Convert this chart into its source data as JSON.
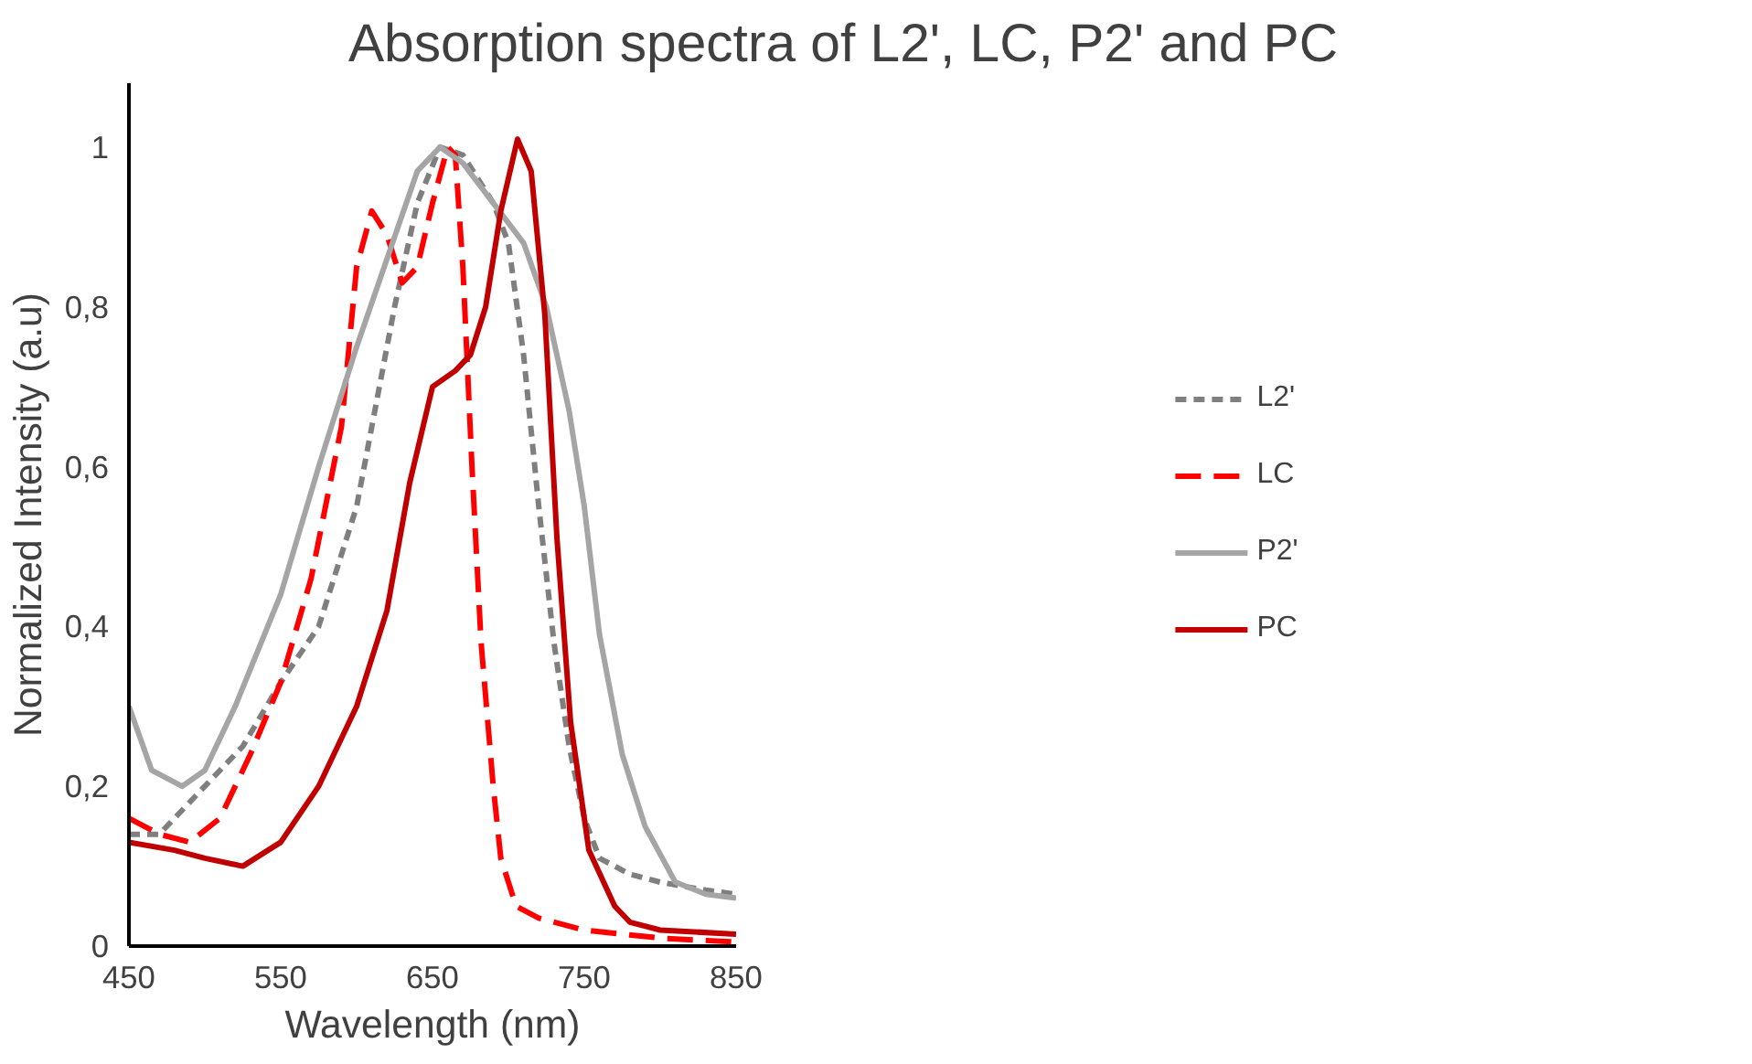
{
  "chart_data": {
    "type": "line",
    "title": "Absorption spectra of L2', LC, P2' and PC",
    "xlabel": "Wavelength (nm)",
    "ylabel": "Normalized Intensity (a.u)",
    "xlim": [
      450,
      850
    ],
    "ylim": [
      0,
      1.08
    ],
    "xticks": [
      450,
      550,
      650,
      750,
      850
    ],
    "yticks": [
      {
        "value": 0,
        "label": "0"
      },
      {
        "value": 0.2,
        "label": "0,2"
      },
      {
        "value": 0.4,
        "label": "0,4"
      },
      {
        "value": 0.6,
        "label": "0,6"
      },
      {
        "value": 0.8,
        "label": "0,8"
      },
      {
        "value": 1,
        "label": "1"
      }
    ],
    "grid": false,
    "legend": "right",
    "marker": "none",
    "series": [
      {
        "name": "L2'",
        "color": "#7f7f7f",
        "line_style": "dotted",
        "x": [
          450,
          470,
          500,
          525,
          550,
          575,
          600,
          625,
          640,
          655,
          670,
          690,
          700,
          710,
          720,
          730,
          740,
          750,
          760,
          780,
          800,
          830,
          850
        ],
        "values": [
          0.14,
          0.14,
          0.2,
          0.25,
          0.33,
          0.4,
          0.55,
          0.8,
          0.93,
          1.0,
          0.99,
          0.93,
          0.88,
          0.74,
          0.55,
          0.38,
          0.25,
          0.16,
          0.11,
          0.09,
          0.08,
          0.07,
          0.065
        ]
      },
      {
        "name": "LC",
        "color": "#ff0000",
        "line_style": "dashed",
        "x": [
          450,
          470,
          490,
          510,
          530,
          550,
          570,
          590,
          600,
          610,
          620,
          630,
          640,
          650,
          660,
          665,
          670,
          676,
          682,
          690,
          695,
          705,
          720,
          750,
          800,
          850
        ],
        "values": [
          0.16,
          0.14,
          0.13,
          0.16,
          0.24,
          0.33,
          0.46,
          0.65,
          0.85,
          0.92,
          0.89,
          0.83,
          0.85,
          0.93,
          1.0,
          0.99,
          0.85,
          0.6,
          0.38,
          0.2,
          0.11,
          0.05,
          0.035,
          0.02,
          0.01,
          0.005
        ]
      },
      {
        "name": "P2'",
        "color": "#a5a5a5",
        "line_style": "solid",
        "x": [
          450,
          465,
          485,
          500,
          520,
          550,
          575,
          600,
          620,
          640,
          655,
          670,
          690,
          710,
          725,
          740,
          750,
          760,
          775,
          790,
          810,
          830,
          850
        ],
        "values": [
          0.3,
          0.22,
          0.2,
          0.22,
          0.3,
          0.44,
          0.6,
          0.75,
          0.86,
          0.97,
          1.0,
          0.98,
          0.93,
          0.88,
          0.8,
          0.67,
          0.55,
          0.39,
          0.24,
          0.15,
          0.08,
          0.065,
          0.06
        ]
      },
      {
        "name": "PC",
        "color": "#c00000",
        "line_style": "solid",
        "x": [
          450,
          480,
          500,
          525,
          550,
          575,
          600,
          620,
          635,
          650,
          665,
          675,
          685,
          695,
          706,
          715,
          724,
          732,
          741,
          753,
          770,
          780,
          800,
          850
        ],
        "values": [
          0.13,
          0.12,
          0.11,
          0.1,
          0.13,
          0.2,
          0.3,
          0.42,
          0.58,
          0.7,
          0.72,
          0.74,
          0.8,
          0.92,
          1.01,
          0.97,
          0.79,
          0.51,
          0.28,
          0.12,
          0.05,
          0.03,
          0.02,
          0.015
        ]
      }
    ]
  }
}
